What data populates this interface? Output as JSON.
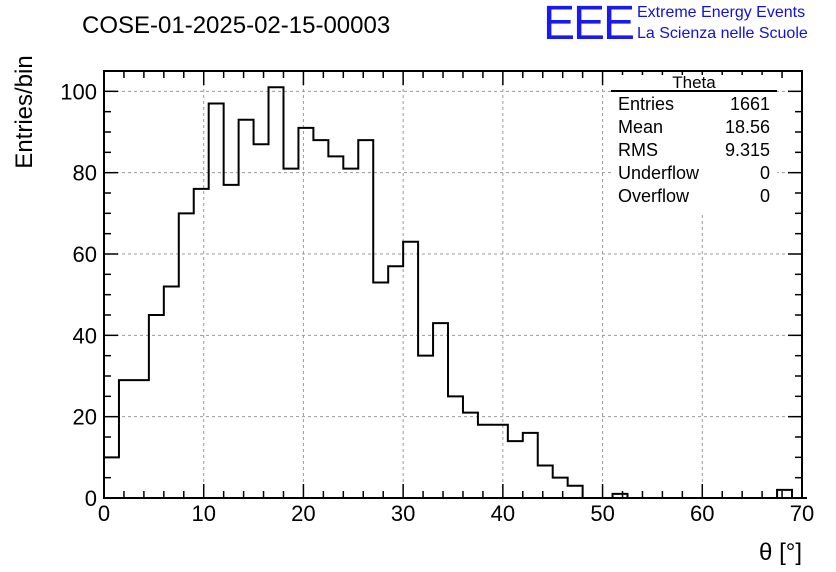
{
  "header": {
    "run_title": "COSE-01-2025-02-15-00003",
    "logo_text": "EEE",
    "logo_line1": "Extreme Energy Events",
    "logo_line2": "La Scienza nelle Scuole"
  },
  "stats_box": {
    "title": "Theta",
    "rows": [
      {
        "label": "Entries",
        "value": "1661"
      },
      {
        "label": "Mean",
        "value": "18.56"
      },
      {
        "label": "RMS",
        "value": "9.315"
      },
      {
        "label": "Underflow",
        "value": "0"
      },
      {
        "label": "Overflow",
        "value": "0"
      }
    ]
  },
  "chart_data": {
    "type": "histogram",
    "title": "COSE-01-2025-02-15-00003",
    "xlabel": "θ [°]",
    "ylabel": "Entries/bin",
    "xlim": [
      0,
      70
    ],
    "ylim": [
      0,
      105
    ],
    "xticks": [
      0,
      10,
      20,
      30,
      40,
      50,
      60,
      70
    ],
    "yticks": [
      0,
      20,
      40,
      60,
      80,
      100
    ],
    "grid": true,
    "bin_width": 1.5,
    "bin_start": 0,
    "values": [
      10,
      29,
      29,
      45,
      52,
      70,
      76,
      97,
      77,
      93,
      87,
      101,
      81,
      91,
      88,
      84,
      81,
      88,
      53,
      57,
      63,
      35,
      43,
      25,
      21,
      18,
      18,
      14,
      16,
      8,
      5,
      3,
      0,
      0,
      1,
      0,
      0,
      0,
      0,
      0,
      0,
      0,
      0,
      0,
      0,
      2,
      0
    ],
    "colors": {
      "line": "#000000",
      "grid": "#9a9a9a",
      "logo": "#1010e0"
    }
  }
}
